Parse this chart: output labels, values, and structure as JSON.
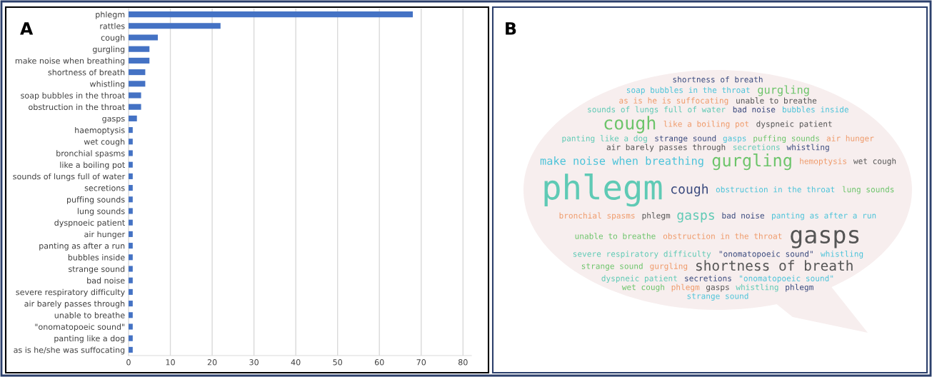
{
  "chart_data": [
    {
      "type": "bar",
      "title": "A",
      "orientation": "horizontal",
      "color": "#4472c4",
      "categories": [
        "phlegm",
        "rattles",
        "cough",
        "gurgling",
        "make noise when breathing",
        "shortness of breath",
        "whistling",
        "soap bubbles in the throat",
        "obstruction in the throat",
        "gasps",
        "haemoptysis",
        "wet cough",
        "bronchial spasms",
        "like a boiling pot",
        "sounds of lungs full of water",
        "secretions",
        "puffing sounds",
        "lung sounds",
        "dyspnoeic patient",
        "air hunger",
        "panting as after a run",
        "bubbles inside",
        "strange sound",
        "bad noise",
        "severe respiratory difficulty",
        "air barely passes through",
        "unable to breathe",
        "\"onomatopoeic sound\"",
        "panting like a dog",
        "as is he/she was suffocating"
      ],
      "values": [
        68,
        22,
        7,
        5,
        5,
        4,
        4,
        3,
        3,
        2,
        1,
        1,
        1,
        1,
        1,
        1,
        1,
        1,
        1,
        1,
        1,
        1,
        1,
        1,
        1,
        1,
        1,
        1,
        1,
        1
      ],
      "xlim": [
        0,
        82
      ],
      "xticks": [
        0,
        10,
        20,
        30,
        40,
        50,
        60,
        70,
        80
      ],
      "grid": "x"
    },
    {
      "type": "other",
      "title": "B",
      "annotations": [
        "shortness of breath",
        "soap bubbles in the throat",
        "gurgling",
        "as is he is suffocating",
        "unable to breathe",
        "sounds of lungs full of water",
        "bad noise",
        "bubbles inside",
        "cough",
        "like a boiling pot",
        "dyspneic patient",
        "panting like a dog",
        "strange sound",
        "gasps",
        "puffing sounds",
        "air hunger",
        "air barely passes through",
        "secretions",
        "whistling",
        "make noise when breathing",
        "gurgling",
        "hemoptysis",
        "wet cough",
        "phlegm",
        "cough",
        "obstruction in the throat",
        "lung sounds",
        "bronchial spasms",
        "phlegm",
        "gasps",
        "bad noise",
        "panting as after a run",
        "unable to breathe",
        "obstruction in the throat",
        "gasps",
        "severe respiratory difficulty",
        "\"onomatopoeic sound\"",
        "whistling",
        "strange sound",
        "gurgling",
        "shortness of breath",
        "dyspneic patient",
        "secretions",
        "\"onomatopoeic sound\"",
        "wet cough",
        "phlegm",
        "gasps",
        "whistling",
        "phlegm",
        "strange sound"
      ]
    }
  ]
}
